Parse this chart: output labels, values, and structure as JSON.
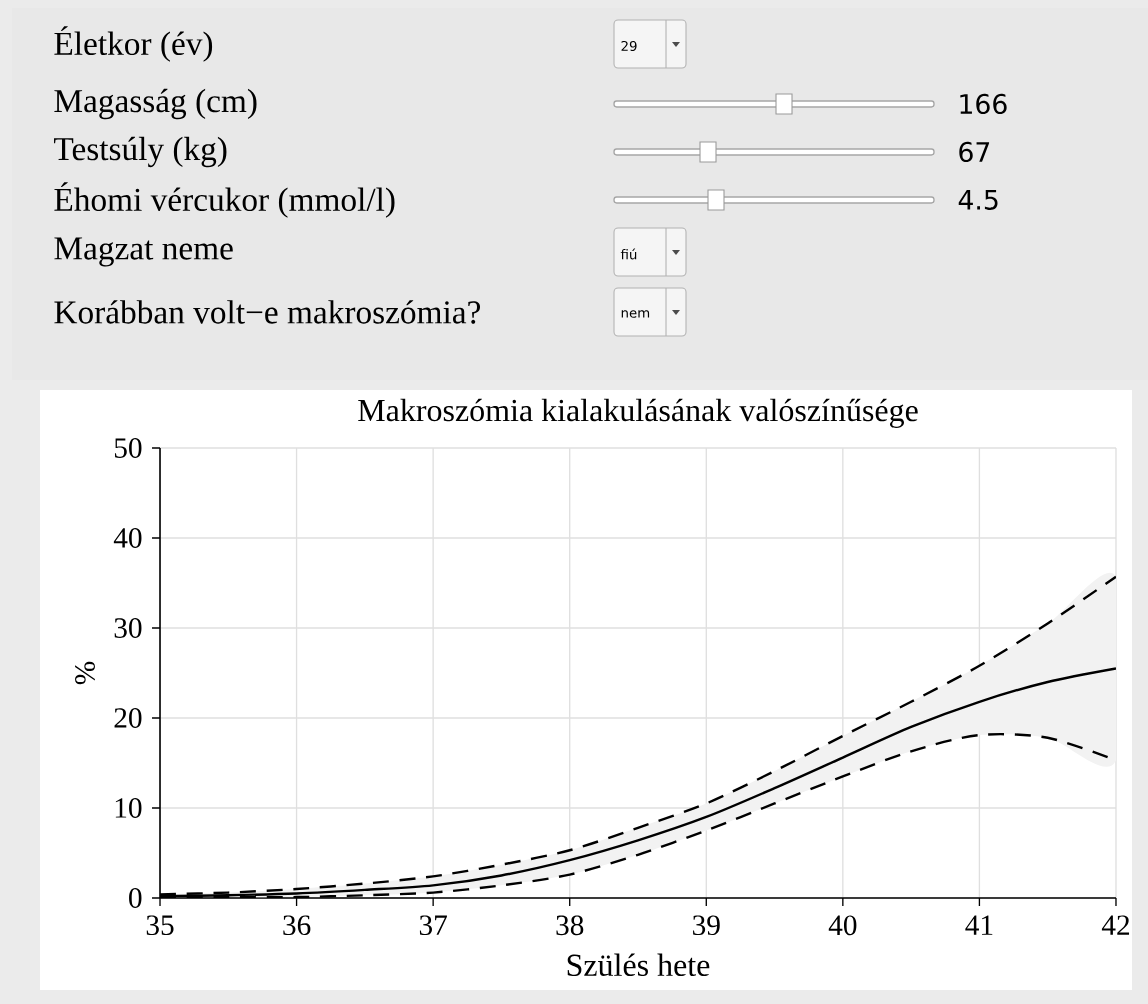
{
  "chart_data": [
    {
      "type": "other",
      "annotations": [
        "Életkor (év)",
        "29",
        "Magasság (cm)",
        "166",
        "Testsúly (kg)",
        "67",
        "Éhomi vércukor (mmol/l)",
        "4.5",
        "Magzat neme",
        "fiú",
        "Korábban volt−e makroszómia?",
        "nem"
      ]
    },
    {
      "type": "line",
      "title": "Makroszómia kialakulásának valószínűsége",
      "xlabel": "Szülés hete",
      "ylabel": "%",
      "x": [
        35,
        35.5,
        36,
        36.5,
        37,
        37.5,
        38,
        38.5,
        39,
        39.5,
        40,
        40.5,
        41,
        41.5,
        42
      ],
      "series": [
        {
          "color": "#000000",
          "values": [
            0.2,
            0.3,
            0.5,
            0.9,
            1.4,
            2.5,
            4.2,
            6.4,
            9.0,
            12.2,
            15.6,
            19.0,
            21.8,
            24.0,
            25.5
          ],
          "lower": [
            0.1,
            0.1,
            0.1,
            0.3,
            0.6,
            1.4,
            2.6,
            4.8,
            7.5,
            10.5,
            13.5,
            16.3,
            18.1,
            17.8,
            15.3
          ],
          "upper": [
            0.4,
            0.6,
            1.0,
            1.6,
            2.4,
            3.7,
            5.3,
            7.8,
            10.5,
            14.1,
            18.0,
            21.8,
            25.8,
            30.5,
            35.7
          ]
        },
        {
          "color": "#000000",
          "line_style": "dashed",
          "values": [
            0.4,
            0.6,
            1.0,
            1.6,
            2.4,
            3.7,
            5.3,
            7.8,
            10.5,
            14.1,
            18.0,
            21.8,
            25.8,
            30.5,
            35.7
          ]
        },
        {
          "color": "#000000",
          "line_style": "dashed",
          "values": [
            0.1,
            0.1,
            0.1,
            0.3,
            0.6,
            1.4,
            2.6,
            4.8,
            7.5,
            10.5,
            13.5,
            16.3,
            18.1,
            17.8,
            15.3
          ]
        }
      ],
      "xlim": [
        35,
        42
      ],
      "ylim": [
        0,
        50
      ],
      "xticks": [
        35,
        36,
        37,
        38,
        39,
        40,
        41,
        42
      ],
      "yticks": [
        0,
        10,
        20,
        30,
        40,
        50
      ],
      "grid": true
    }
  ]
}
